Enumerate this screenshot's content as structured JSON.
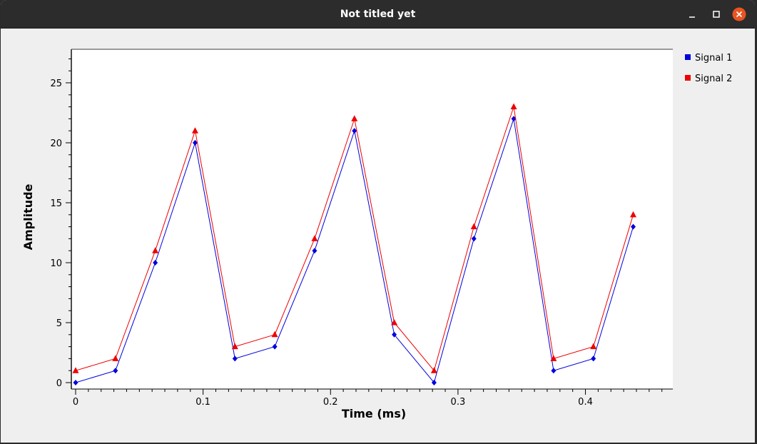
{
  "window": {
    "title": "Not titled yet",
    "controls": [
      "minimize",
      "maximize",
      "close"
    ]
  },
  "colors": {
    "titlebar": "#2c2c2c",
    "close_button": "#e95420",
    "signal1": "#0000dd",
    "signal2": "#ee0000",
    "plot_background": "#ffffff",
    "window_background": "#efefef"
  },
  "chart_data": {
    "type": "line",
    "xlabel": "Time (ms)",
    "ylabel": "Amplitude",
    "xlim": [
      0,
      0.468
    ],
    "ylim": [
      0,
      27.8
    ],
    "xticks": [
      0,
      0.1,
      0.2,
      0.3,
      0.4
    ],
    "xtick_labels": [
      "0",
      "0.1",
      "0.2",
      "0.3",
      "0.4"
    ],
    "yticks": [
      0,
      5,
      10,
      15,
      20,
      25
    ],
    "ytick_labels": [
      "0",
      "5",
      "10",
      "15",
      "20",
      "25"
    ],
    "grid": false,
    "legend_position": "right",
    "x": [
      0,
      0.03125,
      0.0625,
      0.09375,
      0.125,
      0.15625,
      0.1875,
      0.21875,
      0.25,
      0.28125,
      0.3125,
      0.34375,
      0.375,
      0.40625,
      0.4375
    ],
    "series": [
      {
        "name": "Signal 1",
        "color": "#0000dd",
        "marker": "diamond",
        "values": [
          0,
          1,
          10,
          20,
          2,
          3,
          11,
          21,
          4,
          0,
          12,
          22,
          1,
          2,
          13
        ]
      },
      {
        "name": "Signal 2",
        "color": "#ee0000",
        "marker": "triangle",
        "values": [
          1,
          2,
          11,
          21,
          3,
          4,
          12,
          22,
          5,
          1,
          13,
          23,
          2,
          3,
          14
        ]
      }
    ]
  }
}
